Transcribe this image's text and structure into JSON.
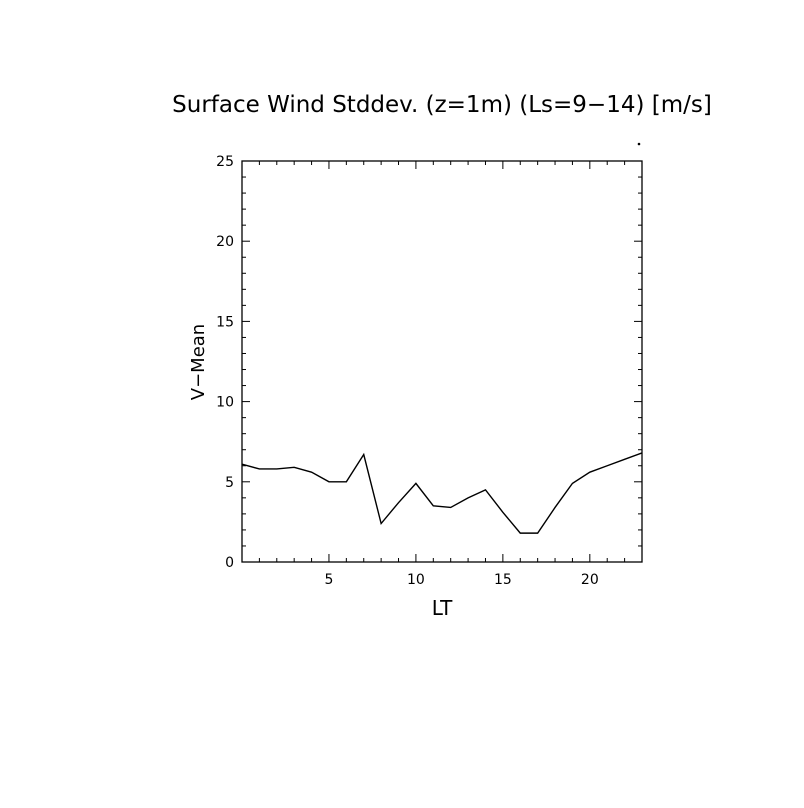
{
  "chart_data": {
    "type": "line",
    "title": "Surface Wind Stddev. (z=1m) (Ls=9−14) [m/s]",
    "xlabel": "LT",
    "ylabel": "V−Mean",
    "xlim": [
      0,
      23
    ],
    "ylim": [
      0,
      25
    ],
    "x_ticks": [
      5,
      10,
      15,
      20
    ],
    "y_ticks": [
      0,
      5,
      10,
      15,
      20,
      25
    ],
    "grid": false,
    "series": [
      {
        "x": [
          0,
          1,
          2,
          3,
          4,
          5,
          6,
          7,
          8,
          9,
          10,
          11,
          12,
          13,
          14,
          15,
          16,
          17,
          18,
          19,
          20,
          21,
          22,
          23
        ],
        "values": [
          6.1,
          5.8,
          5.8,
          5.9,
          5.6,
          5.0,
          5.0,
          6.7,
          2.4,
          3.7,
          4.9,
          3.5,
          3.4,
          4.0,
          4.5,
          3.1,
          1.8,
          1.8,
          3.4,
          4.9,
          5.6,
          6.0,
          6.4,
          6.8
        ]
      }
    ]
  }
}
